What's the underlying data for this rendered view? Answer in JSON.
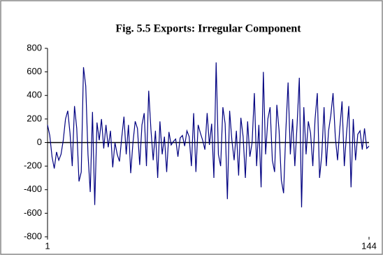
{
  "chart_data": {
    "type": "line",
    "title": "Fig. 5.5 Exports: Irregular Component",
    "x": [
      1,
      2,
      3,
      4,
      5,
      6,
      7,
      8,
      9,
      10,
      11,
      12,
      13,
      14,
      15,
      16,
      17,
      18,
      19,
      20,
      21,
      22,
      23,
      24,
      25,
      26,
      27,
      28,
      29,
      30,
      31,
      32,
      33,
      34,
      35,
      36,
      37,
      38,
      39,
      40,
      41,
      42,
      43,
      44,
      45,
      46,
      47,
      48,
      49,
      50,
      51,
      52,
      53,
      54,
      55,
      56,
      57,
      58,
      59,
      60,
      61,
      62,
      63,
      64,
      65,
      66,
      67,
      68,
      69,
      70,
      71,
      72,
      73,
      74,
      75,
      76,
      77,
      78,
      79,
      80,
      81,
      82,
      83,
      84,
      85,
      86,
      87,
      88,
      89,
      90,
      91,
      92,
      93,
      94,
      95,
      96,
      97,
      98,
      99,
      100,
      101,
      102,
      103,
      104,
      105,
      106,
      107,
      108,
      109,
      110,
      111,
      112,
      113,
      114,
      115,
      116,
      117,
      118,
      119,
      120,
      121,
      122,
      123,
      124,
      125,
      126,
      127,
      128,
      129,
      130,
      131,
      132,
      133,
      134,
      135,
      136,
      137,
      138,
      139,
      140,
      141,
      142,
      143,
      144
    ],
    "series": [
      {
        "color": "#000080",
        "values": [
          150,
          60,
          -120,
          -220,
          -80,
          -150,
          -100,
          20,
          200,
          270,
          80,
          -200,
          310,
          120,
          -330,
          -250,
          640,
          480,
          -100,
          -420,
          260,
          -530,
          170,
          20,
          200,
          -50,
          150,
          -40,
          100,
          -210,
          0,
          -100,
          -160,
          40,
          220,
          -100,
          150,
          -260,
          0,
          180,
          120,
          -190,
          150,
          250,
          -200,
          440,
          110,
          -150,
          100,
          -300,
          180,
          -100,
          50,
          -250,
          90,
          -20,
          10,
          30,
          -120,
          40,
          60,
          -30,
          100,
          50,
          -200,
          250,
          -250,
          150,
          80,
          20,
          -60,
          250,
          -20,
          160,
          -300,
          680,
          -100,
          -200,
          300,
          160,
          -480,
          270,
          20,
          -150,
          100,
          -280,
          210,
          50,
          -300,
          180,
          -120,
          0,
          420,
          -200,
          150,
          -380,
          600,
          -100,
          200,
          300,
          -150,
          -250,
          320,
          100,
          -320,
          -430,
          100,
          510,
          -100,
          200,
          -200,
          150,
          550,
          -550,
          300,
          -100,
          180,
          80,
          -200,
          200,
          420,
          -300,
          -100,
          300,
          -200,
          100,
          230,
          420,
          50,
          -150,
          120,
          350,
          -200,
          80,
          310,
          -380,
          200,
          -150,
          70,
          100,
          -60,
          120,
          -50,
          -30
        ]
      }
    ],
    "xlim": [
      1,
      144
    ],
    "xticks": [
      1,
      144
    ],
    "ylim": [
      -800,
      800
    ],
    "yticks": [
      -800,
      -600,
      -400,
      -200,
      0,
      200,
      400,
      600,
      800
    ],
    "grid": false
  }
}
